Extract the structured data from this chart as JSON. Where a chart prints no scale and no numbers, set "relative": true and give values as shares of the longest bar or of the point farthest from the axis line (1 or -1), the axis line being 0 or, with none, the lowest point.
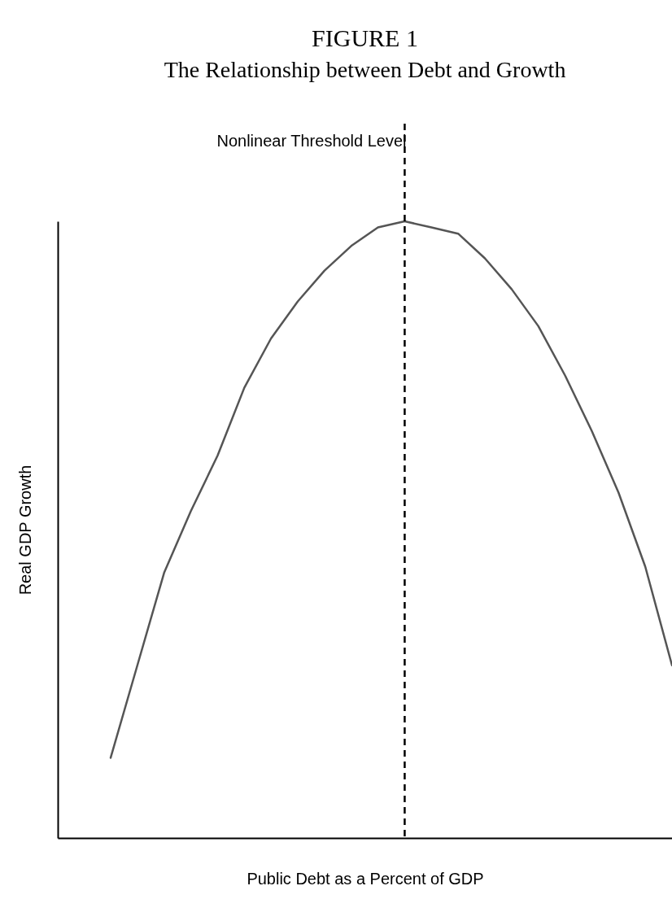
{
  "chart_data": {
    "type": "line",
    "title": "FIGURE 1",
    "subtitle": "The Relationship between Debt and Growth",
    "xlabel": "Public Debt as a Percent of GDP",
    "ylabel": "Real GDP Growth",
    "annotations": [
      "Nonlinear Threshold Level"
    ],
    "relative": true,
    "line_style": "solid",
    "categories": [
      null,
      null,
      null,
      null,
      null,
      null,
      null,
      null,
      null,
      null,
      null,
      null,
      null,
      null,
      null,
      null,
      null,
      null,
      null,
      null,
      null,
      null
    ],
    "series": [
      {
        "color": "#555555",
        "values": [
          0.13,
          0.28,
          0.43,
          0.53,
          0.62,
          0.73,
          0.81,
          0.87,
          0.92,
          0.96,
          0.99,
          1.0,
          0.99,
          0.98,
          0.94,
          0.89,
          0.83,
          0.75,
          0.66,
          0.56,
          0.44,
          0.28
        ]
      }
    ]
  }
}
